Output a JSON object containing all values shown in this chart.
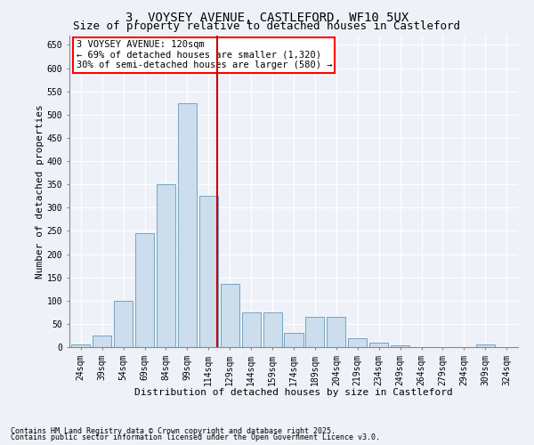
{
  "title": "3, VOYSEY AVENUE, CASTLEFORD, WF10 5UX",
  "subtitle": "Size of property relative to detached houses in Castleford",
  "xlabel": "Distribution of detached houses by size in Castleford",
  "ylabel": "Number of detached properties",
  "footnote1": "Contains HM Land Registry data © Crown copyright and database right 2025.",
  "footnote2": "Contains public sector information licensed under the Open Government Licence v3.0.",
  "annotation_line1": "3 VOYSEY AVENUE: 120sqm",
  "annotation_line2": "← 69% of detached houses are smaller (1,320)",
  "annotation_line3": "30% of semi-detached houses are larger (580) →",
  "bar_color": "#ccdded",
  "bar_edge_color": "#6699bb",
  "vline_color": "#cc0000",
  "vline_x": 120,
  "categories": [
    "24sqm",
    "39sqm",
    "54sqm",
    "69sqm",
    "84sqm",
    "99sqm",
    "114sqm",
    "129sqm",
    "144sqm",
    "159sqm",
    "174sqm",
    "189sqm",
    "204sqm",
    "219sqm",
    "234sqm",
    "249sqm",
    "264sqm",
    "279sqm",
    "294sqm",
    "309sqm",
    "324sqm"
  ],
  "bin_centers": [
    24,
    39,
    54,
    69,
    84,
    99,
    114,
    129,
    144,
    159,
    174,
    189,
    204,
    219,
    234,
    249,
    264,
    279,
    294,
    309,
    324
  ],
  "bin_width": 14,
  "values": [
    5,
    25,
    100,
    245,
    350,
    525,
    325,
    135,
    75,
    75,
    30,
    65,
    65,
    20,
    10,
    3,
    0,
    0,
    0,
    5,
    0
  ],
  "ylim": [
    0,
    670
  ],
  "yticks": [
    0,
    50,
    100,
    150,
    200,
    250,
    300,
    350,
    400,
    450,
    500,
    550,
    600,
    650
  ],
  "background_color": "#eef2f8",
  "plot_background": "#eef2f8",
  "grid_color": "#ffffff",
  "title_fontsize": 10,
  "subtitle_fontsize": 9,
  "axis_label_fontsize": 8,
  "tick_fontsize": 7,
  "annotation_fontsize": 7.5,
  "footnote_fontsize": 6
}
